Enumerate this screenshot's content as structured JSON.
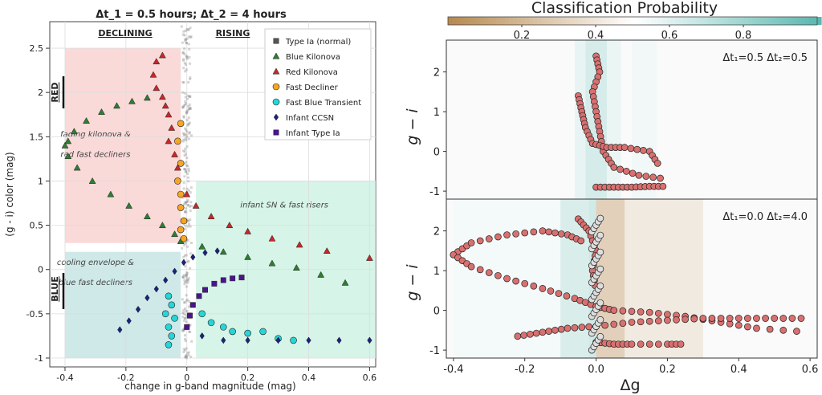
{
  "chart_data": [
    {
      "type": "scatter",
      "title": "Δt_1 = 0.5 hours; Δt_2 = 4 hours",
      "xlabel": "change in g-band magnitude (mag)",
      "ylabel": "(g - i) color (mag)",
      "xlim": [
        -0.45,
        0.62
      ],
      "ylim": [
        -1.1,
        2.8
      ],
      "xticks": [
        "-0.4",
        "-0.2",
        "0",
        "0.2",
        "0.4",
        "0.6"
      ],
      "yticks": [
        "-1",
        "-0.5",
        "0",
        "0.5",
        "1",
        "1.5",
        "2",
        "2.5"
      ],
      "grid": true,
      "legend_position": "top-right",
      "headers": {
        "declining": "DECLINING",
        "rising": "RISING",
        "red": "RED",
        "blue": "BLUE"
      },
      "regions": [
        {
          "label": "fading kilonova &",
          "label2": "red fast decliners",
          "x": [
            -0.4,
            -0.02
          ],
          "y": [
            0.3,
            2.5
          ],
          "color": "#f8cccc"
        },
        {
          "label": "infant SN & fast risers",
          "label2": "",
          "x": [
            0.03,
            0.62
          ],
          "y": [
            -1.0,
            1.0
          ],
          "color": "#c8f0e0"
        },
        {
          "label": "cooling envelope &",
          "label2": "blue fast decliners",
          "x": [
            -0.4,
            -0.02
          ],
          "y": [
            -1.0,
            0.2
          ],
          "color": "#bfe0e0"
        }
      ],
      "series": [
        {
          "name": "Type Ia (normal)",
          "marker": "square",
          "color": "#555555",
          "desc": "dense cloud near Δg≈0"
        },
        {
          "name": "Blue Kilonova",
          "marker": "triangle",
          "color": "#2e7d32",
          "points": [
            [
              -0.13,
              1.94
            ],
            [
              -0.18,
              1.9
            ],
            [
              -0.23,
              1.85
            ],
            [
              -0.28,
              1.78
            ],
            [
              -0.33,
              1.68
            ],
            [
              -0.37,
              1.56
            ],
            [
              -0.39,
              1.45
            ],
            [
              -0.4,
              1.4
            ],
            [
              -0.39,
              1.28
            ],
            [
              -0.36,
              1.15
            ],
            [
              -0.31,
              1.0
            ],
            [
              -0.25,
              0.85
            ],
            [
              -0.19,
              0.72
            ],
            [
              -0.13,
              0.6
            ],
            [
              -0.08,
              0.5
            ],
            [
              -0.04,
              0.4
            ],
            [
              -0.02,
              0.32
            ],
            [
              0.05,
              0.26
            ],
            [
              0.12,
              0.2
            ],
            [
              0.2,
              0.14
            ],
            [
              0.28,
              0.07
            ],
            [
              0.36,
              0.02
            ],
            [
              0.44,
              -0.06
            ],
            [
              0.52,
              -0.15
            ]
          ]
        },
        {
          "name": "Red Kilonova",
          "marker": "triangle",
          "color": "#c62828",
          "points": [
            [
              -0.08,
              2.42
            ],
            [
              -0.1,
              2.35
            ],
            [
              -0.11,
              2.2
            ],
            [
              -0.1,
              2.05
            ],
            [
              -0.08,
              1.95
            ],
            [
              -0.07,
              1.85
            ],
            [
              -0.06,
              1.75
            ],
            [
              -0.05,
              1.6
            ],
            [
              -0.06,
              1.45
            ],
            [
              -0.04,
              1.3
            ],
            [
              -0.03,
              1.15
            ],
            [
              0.0,
              0.85
            ],
            [
              0.03,
              0.72
            ],
            [
              0.08,
              0.6
            ],
            [
              0.14,
              0.5
            ],
            [
              0.2,
              0.43
            ],
            [
              0.28,
              0.35
            ],
            [
              0.37,
              0.28
            ],
            [
              0.46,
              0.21
            ],
            [
              0.6,
              0.13
            ]
          ]
        },
        {
          "name": "Fast Decliner",
          "marker": "circle",
          "color": "#f5a623",
          "points": [
            [
              -0.02,
              1.65
            ],
            [
              -0.03,
              1.45
            ],
            [
              -0.02,
              1.2
            ],
            [
              -0.03,
              1.0
            ],
            [
              -0.02,
              0.85
            ],
            [
              -0.02,
              0.7
            ],
            [
              -0.01,
              0.55
            ],
            [
              -0.02,
              0.45
            ],
            [
              -0.01,
              0.35
            ]
          ]
        },
        {
          "name": "Fast Blue Transient",
          "marker": "circle",
          "color": "#26d6d6",
          "points": [
            [
              -0.06,
              -0.3
            ],
            [
              -0.05,
              -0.4
            ],
            [
              -0.07,
              -0.5
            ],
            [
              -0.04,
              -0.55
            ],
            [
              -0.06,
              -0.65
            ],
            [
              -0.05,
              -0.75
            ],
            [
              -0.06,
              -0.85
            ],
            [
              0.05,
              -0.5
            ],
            [
              0.08,
              -0.6
            ],
            [
              0.12,
              -0.65
            ],
            [
              0.15,
              -0.7
            ],
            [
              0.2,
              -0.72
            ],
            [
              0.25,
              -0.7
            ],
            [
              0.3,
              -0.78
            ],
            [
              0.35,
              -0.8
            ]
          ]
        },
        {
          "name": "Infant CCSN",
          "marker": "diamond",
          "color": "#1a237e",
          "points": [
            [
              -0.22,
              -0.68
            ],
            [
              -0.19,
              -0.58
            ],
            [
              -0.16,
              -0.45
            ],
            [
              -0.13,
              -0.32
            ],
            [
              -0.1,
              -0.22
            ],
            [
              -0.07,
              -0.12
            ],
            [
              -0.04,
              -0.02
            ],
            [
              -0.01,
              0.08
            ],
            [
              0.02,
              0.14
            ],
            [
              0.06,
              0.19
            ],
            [
              0.1,
              0.21
            ],
            [
              0.05,
              -0.75
            ],
            [
              0.12,
              -0.8
            ],
            [
              0.2,
              -0.8
            ],
            [
              0.3,
              -0.8
            ],
            [
              0.4,
              -0.8
            ],
            [
              0.5,
              -0.8
            ],
            [
              0.6,
              -0.8
            ]
          ]
        },
        {
          "name": "Infant Type Ia",
          "marker": "square",
          "color": "#4a148c",
          "points": [
            [
              0.0,
              -0.65
            ],
            [
              0.01,
              -0.52
            ],
            [
              0.02,
              -0.4
            ],
            [
              0.04,
              -0.3
            ],
            [
              0.06,
              -0.23
            ],
            [
              0.09,
              -0.16
            ],
            [
              0.12,
              -0.12
            ],
            [
              0.15,
              -0.1
            ],
            [
              0.18,
              -0.09
            ]
          ]
        }
      ]
    },
    {
      "type": "heatmap",
      "title": "Classification Probability",
      "colorbar_ticks": [
        "0.2",
        "0.4",
        "0.6",
        "0.8"
      ],
      "colorbar_range": [
        0.0,
        1.0
      ],
      "colormap": [
        "#b88a50",
        "#ffffff",
        "#5bb8b0"
      ],
      "xlabel": "Δg",
      "ylabel": "g − i",
      "xlim": [
        -0.42,
        0.62
      ],
      "xticks": [
        "-0.4",
        "-0.2",
        "0.0",
        "0.2",
        "0.4",
        "0.6"
      ],
      "panels": [
        {
          "label": "Δt₁=0.5 Δt₂=0.5",
          "ylim": [
            -1.2,
            2.8
          ],
          "yticks": [
            "-1",
            "0",
            "1",
            "2"
          ]
        },
        {
          "label": "Δt₁=0.0 Δt₂=4.0",
          "ylim": [
            -1.2,
            2.8
          ],
          "yticks": [
            "-1",
            "0",
            "1",
            "2"
          ]
        }
      ]
    }
  ]
}
